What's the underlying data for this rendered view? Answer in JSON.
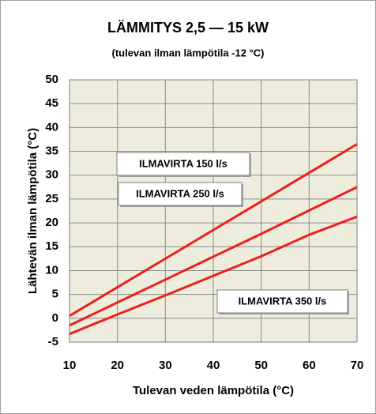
{
  "chart_data": {
    "type": "line",
    "title": "LÄMMITYS 2,5 — 15 kW",
    "subtitle": "(tulevan ilman lämpötila -12 °C)",
    "x_label": "Tulevan veden lämpötila (°C)",
    "y_label": "Lähtevän ilman lämpötila (°C)",
    "x": [
      10,
      20,
      30,
      40,
      50,
      60,
      70
    ],
    "series": [
      {
        "name": "ILMAVIRTA 150 l/s",
        "color": "#e8221e",
        "values": [
          0.5,
          6.5,
          12.5,
          18.5,
          24.5,
          30.5,
          36.5
        ]
      },
      {
        "name": "ILMAVIRTA 250 l/s",
        "color": "#e8221e",
        "values": [
          -1.5,
          3.3,
          8.1,
          12.9,
          17.7,
          22.6,
          27.5
        ]
      },
      {
        "name": "ILMAVIRTA 350 l/s",
        "color": "#e8221e",
        "values": [
          -3.3,
          0.8,
          4.8,
          8.9,
          13,
          17.5,
          21.3
        ]
      }
    ],
    "xlim": [
      10,
      70
    ],
    "xticks": [
      10,
      20,
      30,
      40,
      50,
      60,
      70
    ],
    "ylim": [
      -5,
      50
    ],
    "yticks": [
      -5,
      0,
      5,
      10,
      15,
      20,
      25,
      30,
      35,
      40,
      45,
      50
    ],
    "grid": true
  }
}
